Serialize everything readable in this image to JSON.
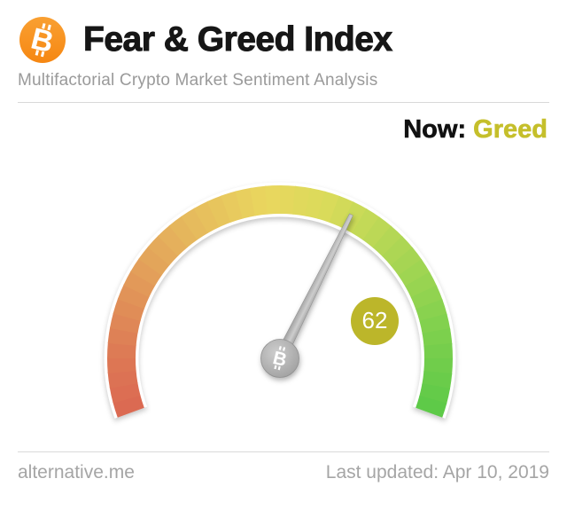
{
  "header": {
    "title": "Fear & Greed Index",
    "subtitle": "Multifactorial Crypto Market Sentiment Analysis",
    "logo_icon": "bitcoin-icon",
    "bitcoin_orange_top": "#f9a032",
    "bitcoin_orange_bottom": "#f68712"
  },
  "status": {
    "now_label": "Now:",
    "now_value": "Greed",
    "value_color": "#c5bf2b"
  },
  "chart_data": {
    "type": "gauge",
    "value": 62,
    "min": 0,
    "max": 100,
    "classification": "Greed",
    "badge_color": "#bcb62a",
    "start_angle_deg": 200,
    "end_angle_deg": -20,
    "band_color_stops": [
      {
        "pos": 0.0,
        "color": "#db6852"
      },
      {
        "pos": 0.1,
        "color": "#dd7a55"
      },
      {
        "pos": 0.22,
        "color": "#e29a59"
      },
      {
        "pos": 0.35,
        "color": "#e6bb5d"
      },
      {
        "pos": 0.48,
        "color": "#e9d75e"
      },
      {
        "pos": 0.58,
        "color": "#d9db5a"
      },
      {
        "pos": 0.7,
        "color": "#b2d755"
      },
      {
        "pos": 0.85,
        "color": "#83d14e"
      },
      {
        "pos": 1.0,
        "color": "#5bc948"
      }
    ],
    "needle_edge_color": "#8d8d8d",
    "needle_mid_color": "#cdcdcd",
    "hub_light_color": "#cdcdcd",
    "hub_dark_color": "#9c9c9c",
    "hub_icon": "bitcoin-icon"
  },
  "footer": {
    "site": "alternative.me",
    "last_updated": "Last updated: Apr 10, 2019"
  }
}
